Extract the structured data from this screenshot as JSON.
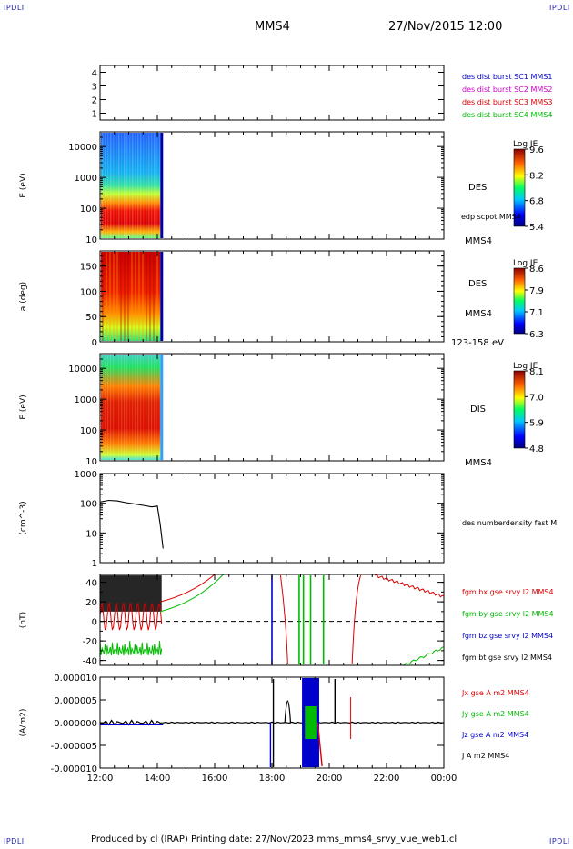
{
  "header": {
    "corner_tl": "IPDLI",
    "corner_tr": "IPDLI",
    "corner_bl": "IPDLI",
    "corner_br": "IPDLI",
    "spacecraft": "MMS4",
    "datetime": "27/Nov/2015 12:00"
  },
  "footer": {
    "text": "Produced by cl (IRAP)   Printing date: 27/Nov/2023   mms_mms4_srvy_vue_web1.cl"
  },
  "chart_data": [
    {
      "type": "heatmap",
      "panel": "burst-availability",
      "ylim": [
        0.5,
        4.5
      ],
      "yticks": [
        "4",
        "3",
        "2",
        "1"
      ],
      "legend": [
        {
          "name": "des dist burst SC1 MMS1",
          "color": "#0000cc"
        },
        {
          "name": "des dist burst SC2 MMS2",
          "color": "#cc00cc"
        },
        {
          "name": "des dist burst SC3 MMS3",
          "color": "#dd0000"
        },
        {
          "name": "des dist burst SC4 MMS4",
          "color": "#00bb00"
        }
      ]
    },
    {
      "type": "heatmap",
      "panel": "des-energy-spectrogram",
      "ylabel": "E (eV)",
      "yscale": "log",
      "ylim": [
        10,
        30000
      ],
      "yticks": [
        "10000",
        "1000",
        "100",
        "10"
      ],
      "colorbar": {
        "title": "Log JE",
        "ticks": [
          "9.6",
          "8.2",
          "6.8",
          "5.4"
        ]
      },
      "labels": [
        "DES",
        "edp scpot MMS4",
        "MMS4"
      ],
      "data_extent_x": [
        "12:00",
        "14:12"
      ]
    },
    {
      "type": "heatmap",
      "panel": "des-pitch-angle",
      "ylabel": "a (deg)",
      "ylim": [
        0,
        180
      ],
      "yticks": [
        "150",
        "100",
        "50",
        "0"
      ],
      "colorbar": {
        "title": "Log JE",
        "ticks": [
          "8.6",
          "7.9",
          "7.1",
          "6.3"
        ]
      },
      "labels": [
        "DES",
        "MMS4",
        "123-158 eV"
      ],
      "data_extent_x": [
        "12:00",
        "14:12"
      ]
    },
    {
      "type": "heatmap",
      "panel": "dis-energy-spectrogram",
      "ylabel": "E (eV)",
      "yscale": "log",
      "ylim": [
        10,
        30000
      ],
      "yticks": [
        "10000",
        "1000",
        "100",
        "10"
      ],
      "colorbar": {
        "title": "Log JE",
        "ticks": [
          "8.1",
          "7.0",
          "5.9",
          "4.8"
        ]
      },
      "labels": [
        "DIS",
        "MMS4"
      ],
      "data_extent_x": [
        "12:00",
        "14:12"
      ]
    },
    {
      "type": "line",
      "panel": "density",
      "ylabel": "(cm^-3)",
      "yscale": "log",
      "ylim": [
        1,
        1000
      ],
      "yticks": [
        "1000",
        "100",
        "10",
        "1"
      ],
      "series": [
        {
          "name": "des numberdensity fast M",
          "color": "#000000",
          "x": [
            12.0,
            12.3,
            12.6,
            12.9,
            13.2,
            13.5,
            13.8,
            14.0,
            14.1,
            14.2
          ],
          "y": [
            110,
            125,
            120,
            105,
            95,
            85,
            75,
            80,
            20,
            3
          ]
        }
      ]
    },
    {
      "type": "line",
      "panel": "magnetic-field",
      "ylabel": "(nT)",
      "ylim": [
        -45,
        48
      ],
      "yticks": [
        "40",
        "20",
        "0",
        "-20",
        "-40"
      ],
      "series": [
        {
          "name": "fgm bx gse srvy l2 MMS4",
          "color": "#dd0000"
        },
        {
          "name": "fgm by gse srvy l2 MMS4",
          "color": "#00bb00"
        },
        {
          "name": "fgm bz gse srvy l2 MMS4",
          "color": "#0000cc"
        },
        {
          "name": "fgm bt gse srvy l2 MMS4",
          "color": "#000000"
        }
      ],
      "zero_line": true
    },
    {
      "type": "line",
      "panel": "current-density",
      "ylabel": "(A/m2)",
      "ylim": [
        -1e-05,
        1e-05
      ],
      "yticks": [
        "0.000010",
        "0.000005",
        "0.000000",
        "-0.000005",
        "-0.000010"
      ],
      "series": [
        {
          "name": "Jx gse A m2 MMS4",
          "color": "#dd0000"
        },
        {
          "name": "Jy gse A m2 MMS4",
          "color": "#00bb00"
        },
        {
          "name": "Jz gse A m2 MMS4",
          "color": "#0000cc"
        },
        {
          "name": "J A m2 MMS4",
          "color": "#000000"
        }
      ]
    }
  ],
  "xaxis": {
    "ticks": [
      "12:00",
      "14:00",
      "16:00",
      "18:00",
      "20:00",
      "22:00",
      "00:00"
    ],
    "range_hours": [
      12,
      24
    ]
  }
}
